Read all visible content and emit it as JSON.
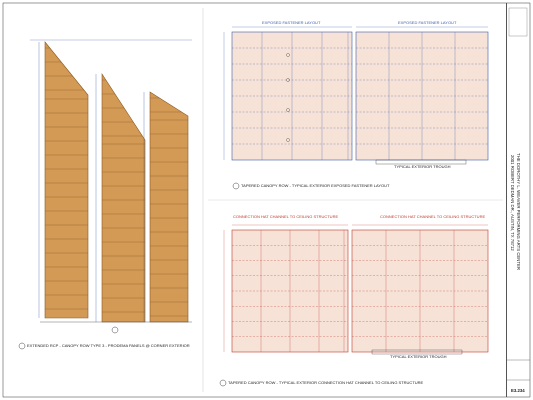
{
  "plans": {
    "left_caption": "EXTENDED RCP - CANOPY ROW TYPE 3 - PRODEMA PANELS @ CORNER EXTERIOR",
    "top_left_title": "EXPOSED FASTENER LAYOUT",
    "top_right_title": "EXPOSED FASTENER LAYOUT",
    "top_caption": "TAPERED CANOPY ROW - TYPICAL EXTERIOR EXPOSED FASTENER LAYOUT",
    "top_trough": "TYPICAL EXTERIOR TROUGH",
    "bottom_left_title": "CONNECTION HAT CHANNEL TO CEILING STRUCTURE",
    "bottom_right_title": "CONNECTION HAT CHANNEL TO CEILING STRUCTURE",
    "bottom_trough": "TYPICAL EXTERIOR TROUGH",
    "bottom_caption": "TAPERED CANOPY ROW - TYPICAL EXTERIOR CONNECTION HAT CHANNEL TO CEILING STRUCTURE"
  },
  "title_block": {
    "project": "THE DOROTHY L. WEAVER PERFORMING ARTS CENTER",
    "address": "2001 ROBERT DEDMAN DR., AUSTIN, TX 78712",
    "sheet_number": "E3.234"
  },
  "colors": {
    "panel": "#d39a55",
    "panel_edge": "#8a5a22",
    "accent_blue": "#3d5da8",
    "accent_red": "#c0392b",
    "layout_fill": "#f6e2d7"
  }
}
